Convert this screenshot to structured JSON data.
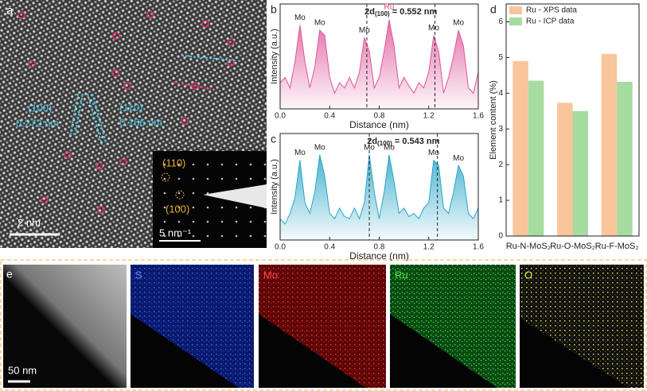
{
  "panel_labels": [
    "a",
    "b",
    "c",
    "d",
    "e"
  ],
  "image_a": {
    "annotations": [
      "(100)",
      "0.272 nm",
      "(110)",
      "0.166 nm"
    ],
    "scale_bar": "2 nm",
    "inset": [
      "(110)",
      "(100)",
      "5 nm⁻¹"
    ]
  },
  "image_e": {
    "maps": [
      "S",
      "Mo",
      "Ru",
      "O"
    ],
    "scale_bar": "50 nm"
  },
  "chart_data": [
    {
      "type": "line",
      "xlabel": "Distance (nm)",
      "ylabel": "Intensity (a.u.)",
      "color": "#e0569a",
      "x": [
        0,
        0.04,
        0.08,
        0.12,
        0.16,
        0.2,
        0.24,
        0.28,
        0.32,
        0.36,
        0.4,
        0.44,
        0.48,
        0.52,
        0.56,
        0.6,
        0.64,
        0.68,
        0.72,
        0.76,
        0.8,
        0.84,
        0.88,
        0.92,
        0.96,
        1.0,
        1.04,
        1.08,
        1.12,
        1.16,
        1.2,
        1.24,
        1.28,
        1.32,
        1.36,
        1.4,
        1.44,
        1.48,
        1.52,
        1.56,
        1.6
      ],
      "values": [
        0.25,
        0.3,
        0.2,
        0.45,
        0.8,
        0.45,
        0.2,
        0.4,
        0.75,
        0.7,
        0.3,
        0.15,
        0.25,
        0.2,
        0.3,
        0.2,
        0.35,
        0.68,
        0.55,
        0.2,
        0.3,
        0.55,
        0.85,
        0.6,
        0.2,
        0.3,
        0.22,
        0.15,
        0.25,
        0.2,
        0.35,
        0.7,
        0.55,
        0.15,
        0.3,
        0.5,
        0.75,
        0.6,
        0.2,
        0.15,
        0.35
      ],
      "xlim": [
        0,
        1.6
      ],
      "xticks": [
        {
          "value": 0,
          "label": "0.0"
        },
        0.4,
        0.8,
        1.2,
        1.6
      ],
      "ylim": [
        0,
        1
      ],
      "annotation": {
        "text": "2d",
        "sub": "(100)",
        "tail": " = 0.552 nm"
      },
      "markers": [
        0.7,
        1.25
      ],
      "peak_labels": [
        {
          "x": 0.16,
          "label": "Mo"
        },
        {
          "x": 0.32,
          "label": "Mo"
        },
        {
          "x": 0.68,
          "label": "Mo"
        },
        {
          "x": 0.88,
          "label": "Ru",
          "color": "#e04070"
        },
        {
          "x": 1.24,
          "label": "Mo"
        },
        {
          "x": 1.44,
          "label": "Mo"
        }
      ]
    },
    {
      "type": "line",
      "xlabel": "Distance (nm)",
      "ylabel": "Intensity (a.u.)",
      "color": "#2aa6c8",
      "x": [
        0,
        0.04,
        0.08,
        0.12,
        0.16,
        0.2,
        0.24,
        0.28,
        0.32,
        0.36,
        0.4,
        0.44,
        0.48,
        0.52,
        0.56,
        0.6,
        0.64,
        0.68,
        0.72,
        0.76,
        0.8,
        0.84,
        0.88,
        0.92,
        0.96,
        1.0,
        1.04,
        1.08,
        1.12,
        1.16,
        1.2,
        1.24,
        1.28,
        1.32,
        1.36,
        1.4,
        1.44,
        1.48,
        1.52,
        1.56,
        1.6
      ],
      "values": [
        0.2,
        0.15,
        0.25,
        0.4,
        0.75,
        0.35,
        0.25,
        0.45,
        0.8,
        0.6,
        0.25,
        0.2,
        0.3,
        0.22,
        0.2,
        0.3,
        0.2,
        0.35,
        0.8,
        0.45,
        0.2,
        0.45,
        0.8,
        0.55,
        0.25,
        0.3,
        0.22,
        0.25,
        0.2,
        0.3,
        0.35,
        0.75,
        0.7,
        0.3,
        0.25,
        0.45,
        0.7,
        0.6,
        0.25,
        0.2,
        0.3
      ],
      "xlim": [
        0,
        1.6
      ],
      "xticks": [
        {
          "value": 0,
          "label": "0.0"
        },
        0.4,
        0.8,
        1.2,
        1.6
      ],
      "ylim": [
        0,
        1
      ],
      "annotation": {
        "text": "2d",
        "sub": "(100)",
        "tail": " = 0.543 nm"
      },
      "markers": [
        0.72,
        1.27
      ],
      "peak_labels": [
        {
          "x": 0.16,
          "label": "Mo"
        },
        {
          "x": 0.32,
          "label": "Mo"
        },
        {
          "x": 0.72,
          "label": "Mo"
        },
        {
          "x": 0.88,
          "label": "Mo"
        },
        {
          "x": 1.24,
          "label": "Mo"
        },
        {
          "x": 1.44,
          "label": "Mo"
        }
      ]
    },
    {
      "type": "bar",
      "ylabel": "Element content (%)",
      "categories": [
        "Ru-N-MoS₂",
        "Ru-O-MoS₂",
        "Ru-F-MoS₂"
      ],
      "series": [
        {
          "name": "Ru - XPS data",
          "color": "#f9c59b",
          "values": [
            4.9,
            3.73,
            5.1
          ]
        },
        {
          "name": "Ru - ICP data",
          "color": "#a6dca0",
          "values": [
            4.35,
            3.5,
            4.32
          ]
        }
      ],
      "ylim": [
        0,
        6.5
      ],
      "yticks": [
        0,
        1,
        2,
        3,
        4,
        5,
        6
      ],
      "legend": "top-left"
    }
  ]
}
